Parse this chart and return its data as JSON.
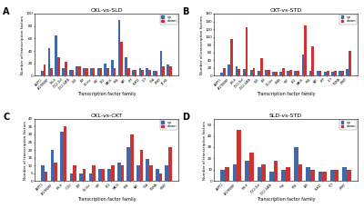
{
  "panels": [
    {
      "label": "A",
      "title": "CKL-vs-SLD",
      "categories": [
        "ABIPY1",
        "AP2/EREBP",
        "BHLH",
        "C2C2-Dof",
        "C2C2-GATA",
        "CSD",
        "ERF",
        "G2-like",
        "HSF",
        "LBD",
        "MADS",
        "MYB",
        "NAC",
        "OFP",
        "PLATZ",
        "TCP",
        "TGA",
        "WRKY",
        "ZF-HD"
      ],
      "up": [
        8,
        45,
        65,
        12,
        10,
        15,
        12,
        12,
        12,
        20,
        25,
        90,
        30,
        10,
        12,
        12,
        8,
        40,
        18
      ],
      "down": [
        18,
        12,
        30,
        22,
        10,
        15,
        12,
        12,
        12,
        12,
        12,
        55,
        12,
        10,
        10,
        10,
        8,
        15,
        15
      ],
      "ylim": [
        0,
        100
      ]
    },
    {
      "label": "B",
      "title": "CKT-vs-STD",
      "categories": [
        "ABIPY1",
        "AP2/EREBP",
        "BHLH",
        "C2C2-Dof",
        "C2C2-GATA",
        "CSD",
        "ERF",
        "G2-like",
        "GRAS",
        "HSF",
        "LBD",
        "MADS",
        "MYB",
        "NAC",
        "OFP",
        "TCP",
        "SIGMA",
        "WRKY"
      ],
      "up": [
        8,
        30,
        25,
        18,
        15,
        12,
        15,
        10,
        10,
        12,
        12,
        55,
        12,
        12,
        10,
        10,
        12,
        18
      ],
      "down": [
        20,
        95,
        18,
        125,
        20,
        45,
        15,
        10,
        20,
        15,
        12,
        130,
        75,
        12,
        12,
        12,
        12,
        65
      ],
      "ylim": [
        0,
        160
      ]
    },
    {
      "label": "C",
      "title": "CKL-vs-CKT",
      "categories": [
        "ABIPY1",
        "AP2/EREBP",
        "BHLH",
        "C1D2",
        "ERF",
        "G2-like",
        "HSF",
        "LBD",
        "MADS",
        "MYB",
        "NAC",
        "TGA",
        "SIGMA",
        "WRKY"
      ],
      "up": [
        10,
        20,
        32,
        5,
        5,
        5,
        8,
        8,
        12,
        22,
        10,
        14,
        8,
        10
      ],
      "down": [
        6,
        12,
        35,
        10,
        8,
        10,
        8,
        10,
        10,
        30,
        20,
        10,
        5,
        22
      ],
      "ylim": [
        0,
        40
      ]
    },
    {
      "label": "D",
      "title": "SLD-vs-STD",
      "categories": [
        "ABIPY1",
        "AP2/EREBP",
        "BHLH",
        "C2C2-Dof",
        "C2C2-GATA",
        "Cap",
        "MYB",
        "ATB",
        "PLATZ",
        "TCP",
        "WRKY"
      ],
      "up": [
        10,
        15,
        18,
        12,
        8,
        10,
        30,
        12,
        8,
        10,
        12
      ],
      "down": [
        12,
        45,
        25,
        15,
        18,
        12,
        15,
        10,
        8,
        10,
        10
      ],
      "ylim": [
        0,
        55
      ]
    }
  ],
  "up_color": "#4169aa",
  "down_color": "#cc3333",
  "bar_width": 0.35,
  "ylabel": "Number of transcription factors",
  "xlabel": "Transcription factor family"
}
